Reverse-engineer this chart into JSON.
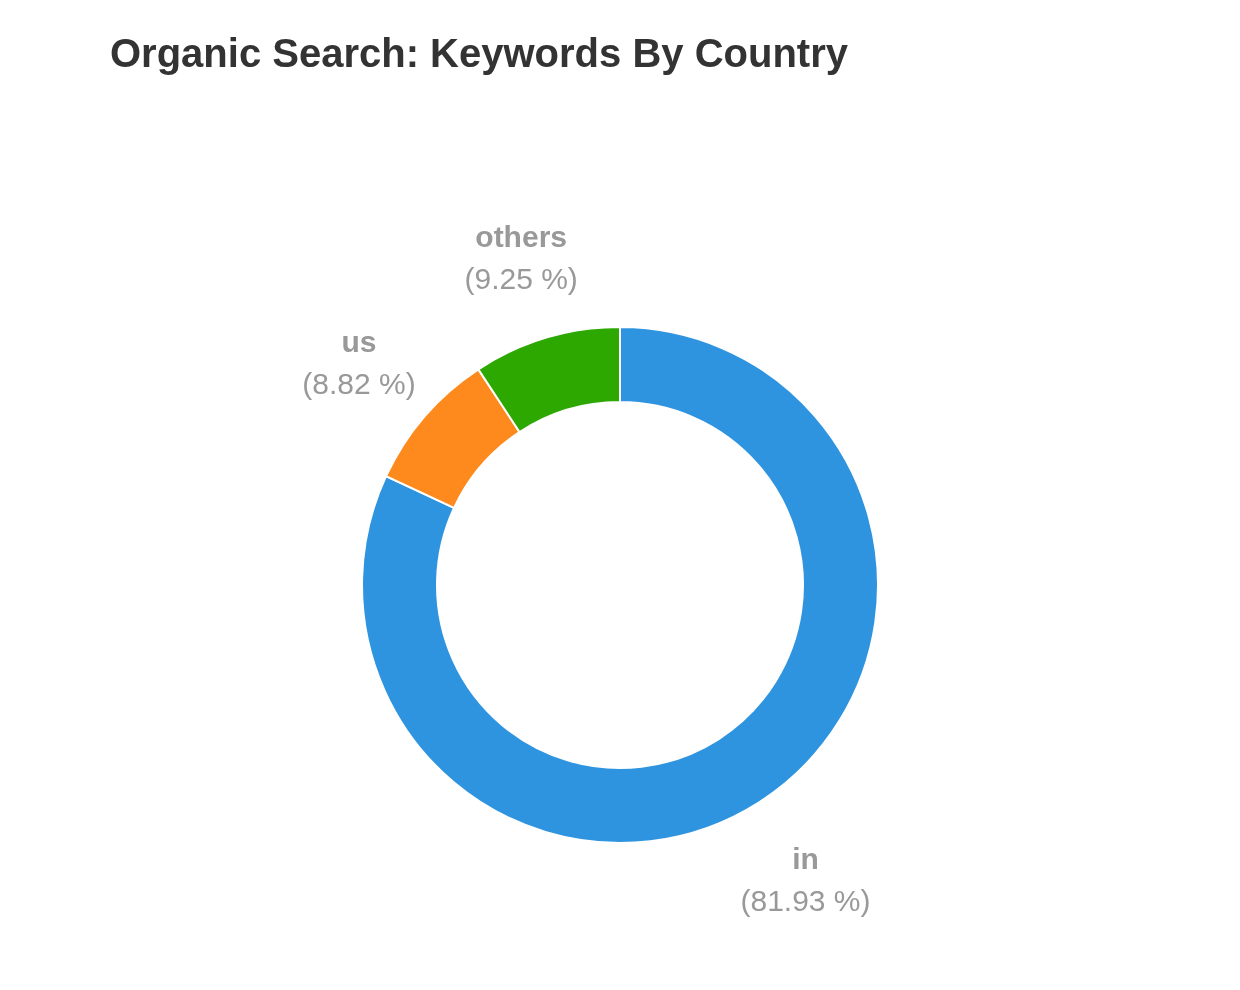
{
  "chart_data": {
    "type": "donut",
    "title": "Organic Search: Keywords By Country",
    "categories": [
      "in",
      "us",
      "others"
    ],
    "values": [
      81.93,
      8.82,
      9.25
    ],
    "value_labels": [
      "(81.93 %)",
      "(8.82 %)",
      "(9.25 %)"
    ],
    "colors": [
      "#2f94df",
      "#fe8a1e",
      "#2ca800"
    ]
  }
}
